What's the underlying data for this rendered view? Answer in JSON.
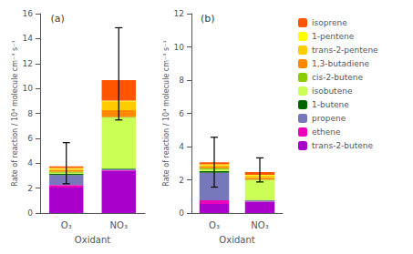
{
  "chart_data": [
    {
      "type": "bar",
      "stacked": true,
      "title": "(a)",
      "xlabel": "Oxidant",
      "ylabel": "Rate of reaction / 10⁴ molecule cm⁻³ s⁻¹",
      "categories": [
        "O₃",
        "NO₃"
      ],
      "series": [
        {
          "name": "trans-2-butene",
          "color": "#aa00cc",
          "values": [
            2.05,
            3.4
          ]
        },
        {
          "name": "ethene",
          "color": "#ee00bb",
          "values": [
            0.2,
            0.03
          ]
        },
        {
          "name": "propene",
          "color": "#7777bb",
          "values": [
            0.8,
            0.08
          ]
        },
        {
          "name": "1-butene",
          "color": "#006600",
          "values": [
            0.1,
            0.05
          ]
        },
        {
          "name": "isobutene",
          "color": "#ccff55",
          "values": [
            0.08,
            4.1
          ]
        },
        {
          "name": "cis-2-butene",
          "color": "#88cc00",
          "values": [
            0.1,
            0.05
          ]
        },
        {
          "name": "1,3-butadiene",
          "color": "#ff8800",
          "values": [
            0.13,
            0.55
          ]
        },
        {
          "name": "trans-2-pentene",
          "color": "#ffcc00",
          "values": [
            0.1,
            0.7
          ]
        },
        {
          "name": "1-pentene",
          "color": "#ffff00",
          "values": [
            0.05,
            0.06
          ]
        },
        {
          "name": "isoprene",
          "color": "#ff5500",
          "values": [
            0.14,
            1.65
          ]
        }
      ],
      "err_lo": [
        1.4,
        3.2
      ],
      "err_hi": [
        1.9,
        4.2
      ],
      "ylim": [
        0,
        16
      ],
      "yticks": [
        0,
        2,
        4,
        6,
        8,
        10,
        12,
        14,
        16
      ],
      "grid": false
    },
    {
      "type": "bar",
      "stacked": true,
      "title": "(b)",
      "xlabel": "Oxidant",
      "ylabel": "Rate of reaction / 10⁴ molecule cm⁻³ s⁻¹",
      "categories": [
        "O₃",
        "NO₃"
      ],
      "series": [
        {
          "name": "trans-2-butene",
          "color": "#aa00cc",
          "values": [
            0.55,
            0.68
          ]
        },
        {
          "name": "ethene",
          "color": "#ee00bb",
          "values": [
            0.22,
            0.02
          ]
        },
        {
          "name": "propene",
          "color": "#7777bb",
          "values": [
            1.65,
            0.05
          ]
        },
        {
          "name": "1-butene",
          "color": "#006600",
          "values": [
            0.1,
            0.03
          ]
        },
        {
          "name": "isobutene",
          "color": "#ccff55",
          "values": [
            0.09,
            1.2
          ]
        },
        {
          "name": "cis-2-butene",
          "color": "#88cc00",
          "values": [
            0.09,
            0.03
          ]
        },
        {
          "name": "1,3-butadiene",
          "color": "#ff8800",
          "values": [
            0.1,
            0.12
          ]
        },
        {
          "name": "trans-2-pentene",
          "color": "#ffcc00",
          "values": [
            0.09,
            0.15
          ]
        },
        {
          "name": "1-pentene",
          "color": "#ffff00",
          "values": [
            0.04,
            0.02
          ]
        },
        {
          "name": "isoprene",
          "color": "#ff5500",
          "values": [
            0.13,
            0.17
          ]
        }
      ],
      "err_lo": [
        1.5,
        0.6
      ],
      "err_hi": [
        1.5,
        0.85
      ],
      "ylim": [
        0,
        12
      ],
      "yticks": [
        0,
        2,
        4,
        6,
        8,
        10,
        12
      ],
      "grid": false,
      "legend": "right"
    }
  ]
}
